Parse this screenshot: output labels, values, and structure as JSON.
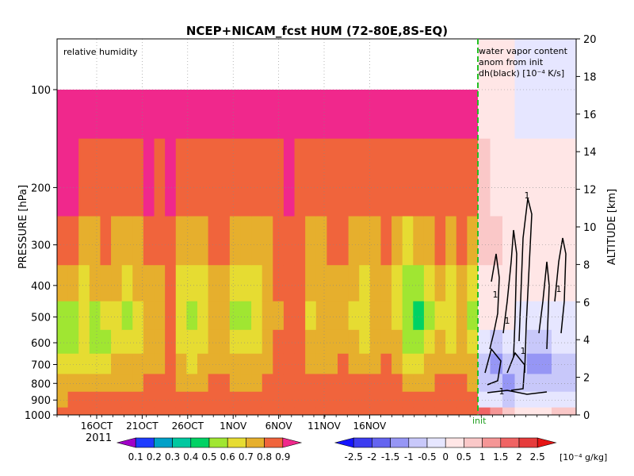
{
  "chart_data": {
    "type": "heatmap",
    "title": "NCEP+NICAM_fcst HUM (72-80E,8S-EQ)",
    "panels": {
      "left_label": "relative humidity",
      "right_label_lines": [
        "water vapor content",
        "anom from init",
        "dh(black) [10⁻⁴ K/s]"
      ]
    },
    "y_left": {
      "label": "PRESSURE [hPa]",
      "ticks": [
        "100",
        "200",
        "300",
        "400",
        "500",
        "600",
        "700",
        "800",
        "900",
        "1000"
      ],
      "values": [
        100,
        200,
        300,
        400,
        500,
        600,
        700,
        800,
        900,
        1000
      ],
      "scale": "log"
    },
    "y_right": {
      "label": "ALTITUDE [km]",
      "ticks": [
        "0",
        "2",
        "4",
        "6",
        "8",
        "10",
        "12",
        "14",
        "16",
        "18",
        "20"
      ],
      "range": [
        0,
        20
      ]
    },
    "x": {
      "ticks": [
        "16OCT",
        "21OCT",
        "26OCT",
        "1NOV",
        "6NOV",
        "11NOV",
        "16NOV"
      ],
      "year_label": "2011",
      "start_day": "14OCT",
      "init_label": "init"
    },
    "colorbar_rh": {
      "ticks": [
        "0.1",
        "0.2",
        "0.3",
        "0.4",
        "0.5",
        "0.6",
        "0.7",
        "0.8",
        "0.9"
      ],
      "colors": [
        "#a000c8",
        "#1e3cff",
        "#00a0c8",
        "#00c8a0",
        "#00d264",
        "#a0e632",
        "#e6dc32",
        "#e6af2d",
        "#f0643c",
        "#f0288c"
      ]
    },
    "colorbar_anom": {
      "ticks": [
        "-2.5",
        "-2",
        "-1.5",
        "-1",
        "-0.5",
        "0",
        "0.5",
        "1",
        "1.5",
        "2",
        "2.5"
      ],
      "unit": "[10⁻⁴ g/kg]",
      "colors": [
        "#1414ff",
        "#3c3cf0",
        "#6464f0",
        "#9696f5",
        "#c8c8fa",
        "#e6e6ff",
        "#ffe6e6",
        "#fac8c8",
        "#f59696",
        "#f06464",
        "#e63c3c",
        "#e61414"
      ]
    },
    "contour_label": "1",
    "rh_columns": [
      [
        0.91,
        0.92,
        0.85,
        0.78,
        0.55,
        0.52,
        0.62,
        0.7,
        0.78,
        0.85
      ],
      [
        0.92,
        0.91,
        0.82,
        0.7,
        0.56,
        0.55,
        0.65,
        0.72,
        0.8,
        0.86
      ],
      [
        0.93,
        0.88,
        0.78,
        0.66,
        0.62,
        0.6,
        0.66,
        0.74,
        0.81,
        0.86
      ],
      [
        0.93,
        0.86,
        0.75,
        0.7,
        0.55,
        0.52,
        0.64,
        0.73,
        0.8,
        0.85
      ],
      [
        0.92,
        0.88,
        0.8,
        0.72,
        0.62,
        0.58,
        0.66,
        0.74,
        0.81,
        0.86
      ],
      [
        0.93,
        0.86,
        0.76,
        0.7,
        0.66,
        0.64,
        0.7,
        0.76,
        0.82,
        0.87
      ],
      [
        0.92,
        0.84,
        0.74,
        0.65,
        0.55,
        0.6,
        0.7,
        0.77,
        0.83,
        0.87
      ],
      [
        0.91,
        0.86,
        0.78,
        0.72,
        0.68,
        0.68,
        0.72,
        0.78,
        0.84,
        0.88
      ],
      [
        0.93,
        0.9,
        0.82,
        0.76,
        0.72,
        0.7,
        0.74,
        0.8,
        0.85,
        0.88
      ],
      [
        0.92,
        0.88,
        0.8,
        0.74,
        0.7,
        0.72,
        0.76,
        0.81,
        0.85,
        0.89
      ],
      [
        0.93,
        0.91,
        0.86,
        0.82,
        0.8,
        0.82,
        0.83,
        0.84,
        0.86,
        0.89
      ],
      [
        0.91,
        0.86,
        0.74,
        0.68,
        0.62,
        0.64,
        0.7,
        0.76,
        0.82,
        0.87
      ],
      [
        0.9,
        0.84,
        0.72,
        0.64,
        0.58,
        0.6,
        0.68,
        0.75,
        0.81,
        0.86
      ],
      [
        0.91,
        0.82,
        0.7,
        0.66,
        0.62,
        0.66,
        0.71,
        0.77,
        0.83,
        0.87
      ],
      [
        0.92,
        0.87,
        0.8,
        0.76,
        0.72,
        0.72,
        0.76,
        0.8,
        0.84,
        0.88
      ],
      [
        0.92,
        0.88,
        0.82,
        0.78,
        0.74,
        0.74,
        0.77,
        0.81,
        0.85,
        0.88
      ],
      [
        0.91,
        0.84,
        0.72,
        0.64,
        0.56,
        0.62,
        0.71,
        0.78,
        0.83,
        0.87
      ],
      [
        0.9,
        0.82,
        0.7,
        0.62,
        0.55,
        0.6,
        0.7,
        0.77,
        0.83,
        0.87
      ],
      [
        0.91,
        0.85,
        0.74,
        0.68,
        0.64,
        0.66,
        0.72,
        0.79,
        0.84,
        0.88
      ],
      [
        0.92,
        0.86,
        0.78,
        0.72,
        0.7,
        0.72,
        0.76,
        0.8,
        0.85,
        0.88
      ],
      [
        0.92,
        0.89,
        0.84,
        0.8,
        0.78,
        0.8,
        0.82,
        0.84,
        0.86,
        0.89
      ],
      [
        0.93,
        0.9,
        0.86,
        0.82,
        0.8,
        0.82,
        0.84,
        0.85,
        0.87,
        0.89
      ],
      [
        0.92,
        0.88,
        0.82,
        0.8,
        0.8,
        0.84,
        0.85,
        0.86,
        0.88,
        0.89
      ],
      [
        0.91,
        0.84,
        0.74,
        0.7,
        0.68,
        0.72,
        0.76,
        0.8,
        0.85,
        0.88
      ],
      [
        0.91,
        0.86,
        0.76,
        0.72,
        0.7,
        0.72,
        0.77,
        0.81,
        0.85,
        0.88
      ],
      [
        0.92,
        0.88,
        0.8,
        0.74,
        0.72,
        0.74,
        0.78,
        0.82,
        0.85,
        0.88
      ],
      [
        0.92,
        0.89,
        0.82,
        0.78,
        0.76,
        0.76,
        0.8,
        0.82,
        0.86,
        0.89
      ],
      [
        0.91,
        0.85,
        0.76,
        0.7,
        0.68,
        0.7,
        0.74,
        0.8,
        0.85,
        0.88
      ],
      [
        0.9,
        0.84,
        0.72,
        0.66,
        0.64,
        0.68,
        0.74,
        0.8,
        0.84,
        0.88
      ],
      [
        0.91,
        0.86,
        0.78,
        0.74,
        0.72,
        0.74,
        0.78,
        0.82,
        0.85,
        0.88
      ],
      [
        0.92,
        0.88,
        0.82,
        0.78,
        0.76,
        0.76,
        0.8,
        0.83,
        0.86,
        0.89
      ],
      [
        0.91,
        0.84,
        0.74,
        0.68,
        0.66,
        0.7,
        0.75,
        0.8,
        0.85,
        0.88
      ],
      [
        0.92,
        0.82,
        0.66,
        0.55,
        0.5,
        0.58,
        0.68,
        0.76,
        0.82,
        0.87
      ],
      [
        0.92,
        0.84,
        0.7,
        0.52,
        0.48,
        0.56,
        0.67,
        0.75,
        0.82,
        0.87
      ],
      [
        0.91,
        0.86,
        0.74,
        0.6,
        0.56,
        0.62,
        0.7,
        0.77,
        0.83,
        0.87
      ],
      [
        0.92,
        0.88,
        0.8,
        0.72,
        0.68,
        0.7,
        0.75,
        0.8,
        0.84,
        0.88
      ],
      [
        0.91,
        0.86,
        0.76,
        0.66,
        0.62,
        0.68,
        0.74,
        0.8,
        0.84,
        0.88
      ],
      [
        0.92,
        0.88,
        0.8,
        0.72,
        0.7,
        0.72,
        0.77,
        0.81,
        0.85,
        0.88
      ],
      [
        0.91,
        0.85,
        0.74,
        0.62,
        0.55,
        0.62,
        0.72,
        0.78,
        0.84,
        0.88
      ]
    ],
    "anom_columns": [
      [
        0.3,
        0.5,
        0.6,
        0.4,
        0.2,
        -0.4,
        -0.9,
        -0.7,
        -0.2,
        1.6
      ],
      [
        0.2,
        0.4,
        0.5,
        0.3,
        0.1,
        -0.6,
        -1.2,
        -0.9,
        -0.4,
        1.2
      ],
      [
        0.1,
        0.3,
        0.4,
        0.2,
        0.0,
        -0.5,
        -1.0,
        -1.1,
        -0.6,
        0.6
      ],
      [
        -0.1,
        0.2,
        0.3,
        0.2,
        -0.1,
        -0.4,
        -0.8,
        -0.6,
        -0.3,
        0.3
      ],
      [
        -0.3,
        0.1,
        0.2,
        0.1,
        -0.2,
        -0.6,
        -1.1,
        -0.8,
        -0.5,
        0.2
      ],
      [
        -0.4,
        0.0,
        0.1,
        0.0,
        -0.3,
        -0.7,
        -1.2,
        -1.0,
        -0.4,
        0.4
      ],
      [
        -0.3,
        0.1,
        0.2,
        0.1,
        -0.2,
        -0.5,
        -0.9,
        -0.7,
        -0.3,
        0.6
      ],
      [
        -0.2,
        0.2,
        0.3,
        0.2,
        -0.1,
        -0.4,
        -0.8,
        -0.9,
        -0.5,
        0.8
      ]
    ]
  }
}
